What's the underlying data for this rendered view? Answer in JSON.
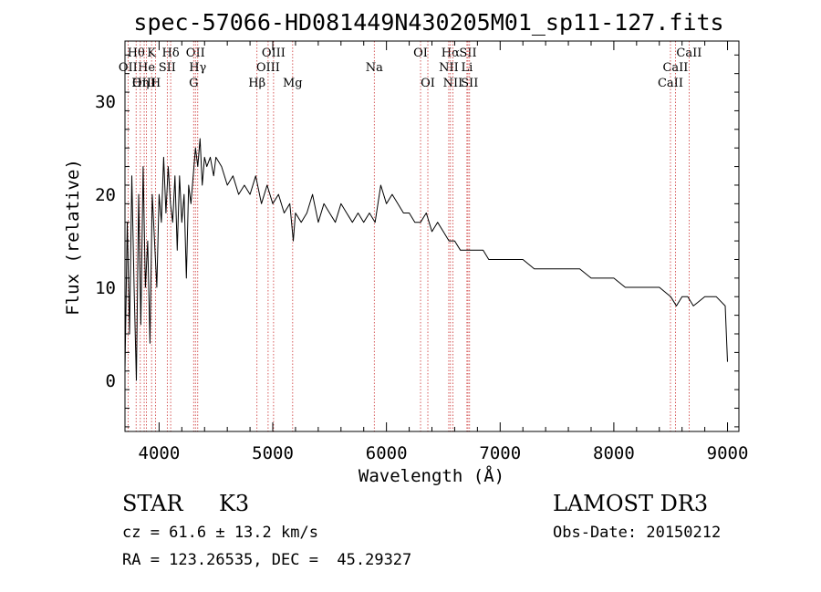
{
  "chart_data": {
    "type": "line",
    "title": "spec-57066-HD081449N430205M01_sp11-127.fits",
    "xlabel": "Wavelength (Å)",
    "ylabel": "Flux (relative)",
    "xlim": [
      3700,
      9100
    ],
    "ylim": [
      -5.5,
      36.5
    ],
    "x_ticks": [
      4000,
      5000,
      6000,
      7000,
      8000,
      9000
    ],
    "y_ticks": [
      0,
      10,
      20,
      30
    ],
    "grid": false,
    "series": [
      {
        "name": "spectrum",
        "x": [
          3700,
          3720,
          3740,
          3760,
          3780,
          3800,
          3820,
          3840,
          3860,
          3880,
          3900,
          3920,
          3940,
          3960,
          3980,
          4000,
          4020,
          4040,
          4060,
          4080,
          4100,
          4120,
          4140,
          4160,
          4180,
          4200,
          4220,
          4240,
          4260,
          4280,
          4300,
          4320,
          4340,
          4360,
          4380,
          4400,
          4420,
          4450,
          4480,
          4500,
          4550,
          4600,
          4650,
          4700,
          4750,
          4800,
          4850,
          4900,
          4950,
          5000,
          5050,
          5100,
          5150,
          5180,
          5200,
          5250,
          5300,
          5350,
          5400,
          5450,
          5500,
          5550,
          5600,
          5650,
          5700,
          5750,
          5800,
          5850,
          5900,
          5950,
          6000,
          6050,
          6100,
          6150,
          6200,
          6250,
          6300,
          6350,
          6400,
          6450,
          6500,
          6550,
          6600,
          6650,
          6700,
          6750,
          6800,
          6850,
          6900,
          6950,
          7000,
          7100,
          7200,
          7300,
          7400,
          7500,
          7600,
          7700,
          7800,
          7900,
          8000,
          8100,
          8200,
          8300,
          8400,
          8500,
          8550,
          8600,
          8650,
          8700,
          8800,
          8900,
          8980,
          9000
        ],
        "values": [
          1,
          17,
          5,
          22,
          10,
          0,
          20,
          6,
          23,
          10,
          15,
          4,
          20,
          15,
          10,
          20,
          17,
          24,
          18,
          23,
          19,
          17,
          22,
          14,
          22,
          17,
          20,
          11,
          21,
          19,
          22,
          25,
          23,
          26,
          21,
          24,
          23,
          24,
          22,
          24,
          23,
          21,
          22,
          20,
          21,
          20,
          22,
          19,
          21,
          19,
          20,
          18,
          19,
          15,
          18,
          17,
          18,
          20,
          17,
          19,
          18,
          17,
          19,
          18,
          17,
          18,
          17,
          18,
          17,
          21,
          19,
          20,
          19,
          18,
          18,
          17,
          17,
          18,
          16,
          17,
          16,
          15,
          15,
          14,
          14,
          14,
          14,
          14,
          13,
          13,
          13,
          13,
          13,
          12,
          12,
          12,
          12,
          12,
          11,
          11,
          11,
          10,
          10,
          10,
          10,
          9,
          8,
          9,
          9,
          8,
          9,
          9,
          8,
          2
        ]
      }
    ],
    "line_markers": [
      {
        "label": "Hθ",
        "x": 3798,
        "row": 1
      },
      {
        "label": "K",
        "x": 3934,
        "row": 1
      },
      {
        "label": "Hδ",
        "x": 4102,
        "row": 1
      },
      {
        "label": "OII",
        "x": 4320,
        "row": 1
      },
      {
        "label": "OIII",
        "x": 5007,
        "row": 1
      },
      {
        "label": "OI",
        "x": 6300,
        "row": 1
      },
      {
        "label": "Hα",
        "x": 6563,
        "row": 1
      },
      {
        "label": "SII",
        "x": 6717,
        "row": 1
      },
      {
        "label": "CaII",
        "x": 8662,
        "row": 1
      },
      {
        "label": "OII",
        "x": 3727,
        "row": 2
      },
      {
        "label": "He",
        "x": 3889,
        "row": 2
      },
      {
        "label": "SII",
        "x": 4072,
        "row": 2
      },
      {
        "label": "Hγ",
        "x": 4340,
        "row": 2
      },
      {
        "label": "OIII",
        "x": 4959,
        "row": 2
      },
      {
        "label": "Na",
        "x": 5893,
        "row": 2
      },
      {
        "label": "NII",
        "x": 6548,
        "row": 2
      },
      {
        "label": "Li",
        "x": 6708,
        "row": 2
      },
      {
        "label": "CaII",
        "x": 8542,
        "row": 2
      },
      {
        "label": "OIII",
        "x": 3869,
        "row": 3
      },
      {
        "label": "Hη",
        "x": 3835,
        "row": 3
      },
      {
        "label": "H",
        "x": 3969,
        "row": 3
      },
      {
        "label": "G",
        "x": 4304,
        "row": 3
      },
      {
        "label": "Hβ",
        "x": 4861,
        "row": 3
      },
      {
        "label": "Mg",
        "x": 5175,
        "row": 3
      },
      {
        "label": "OI",
        "x": 6364,
        "row": 3
      },
      {
        "label": "NII",
        "x": 6584,
        "row": 3
      },
      {
        "label": "SII",
        "x": 6731,
        "row": 3
      },
      {
        "label": "CaII",
        "x": 8498,
        "row": 3
      }
    ],
    "marker_color": "#cc3333"
  },
  "info": {
    "object_type": "STAR",
    "subclass": "K3",
    "survey": "LAMOST DR3",
    "cz": "cz = 61.6 ± 13.2 km/s",
    "obs_date": "Obs-Date: 20150212",
    "coords": "RA = 123.26535, DEC =  45.29327"
  }
}
